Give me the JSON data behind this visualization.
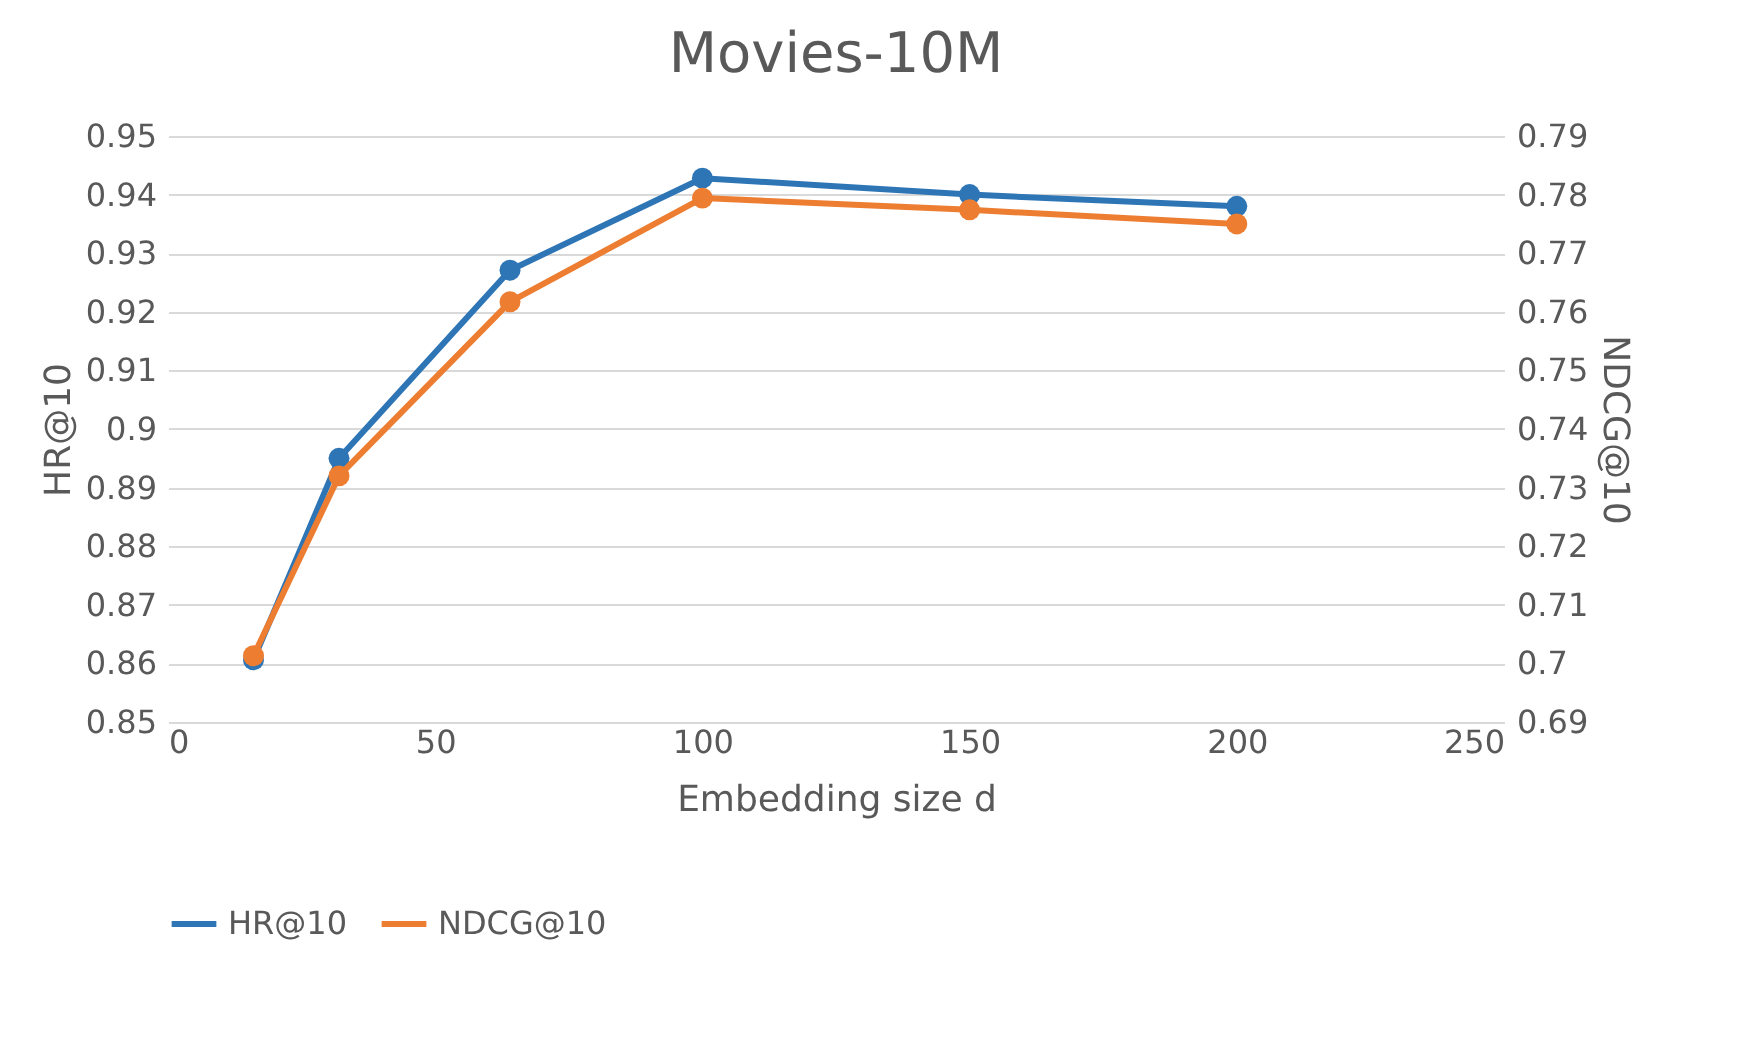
{
  "chart_data": {
    "type": "line",
    "title": "Movies-10M",
    "xlabel": "Embedding size d",
    "ylabel": "HR@10",
    "y2label": "NDCG@10",
    "x": [
      16,
      32,
      64,
      100,
      150,
      200
    ],
    "series": [
      {
        "name": "HR@10",
        "color": "#2e75b6",
        "values": [
          0.8606,
          0.895,
          0.9271,
          0.9428,
          0.94,
          0.938
        ]
      },
      {
        "name": "NDCG@10",
        "color": "#ed7d31",
        "axis": "y2",
        "values": [
          0.7013,
          0.732,
          0.7617,
          0.7794,
          0.7774,
          0.775
        ]
      }
    ],
    "xlim": [
      0,
      250
    ],
    "xticks": [
      0,
      50,
      100,
      150,
      200,
      250
    ],
    "ylim": [
      0.85,
      0.95
    ],
    "yticks": [
      0.85,
      0.86,
      0.87,
      0.88,
      0.89,
      0.9,
      0.91,
      0.92,
      0.93,
      0.94,
      0.95
    ],
    "y2lim": [
      0.69,
      0.79
    ],
    "y2ticks": [
      0.69,
      0.7,
      0.71,
      0.72,
      0.73,
      0.74,
      0.75,
      0.76,
      0.77,
      0.78,
      0.79
    ],
    "grid": "y",
    "legend": "bottom",
    "marker": "circle",
    "line_style": "solid"
  }
}
